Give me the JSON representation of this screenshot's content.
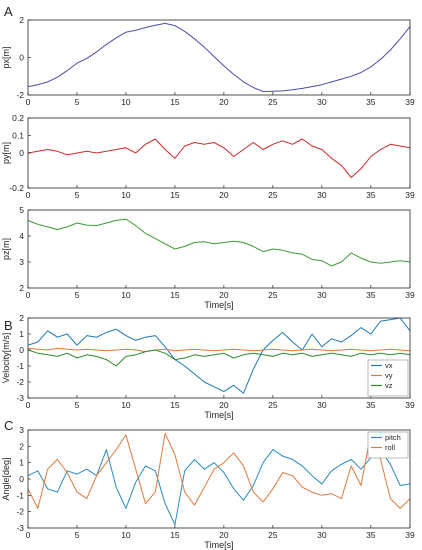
{
  "panel_labels": [
    "A",
    "B",
    "C"
  ],
  "colors": {
    "px": "#4b4bb0",
    "py": "#cc2a2a",
    "pz": "#3f9a35",
    "vx": "#1f77b4",
    "vy": "#e8743b",
    "vz": "#2e8b2e",
    "pitch": "#2a8ac4",
    "roll": "#e07a3e"
  },
  "chart_data": [
    {
      "type": "line",
      "ylabel": "px[m]",
      "xlabel": "",
      "xlim": [
        0,
        39
      ],
      "ylim": [
        -2,
        2
      ],
      "xticks": [
        0,
        5,
        10,
        15,
        20,
        25,
        30,
        35,
        39
      ],
      "yticks": [
        -2,
        0,
        2
      ],
      "series": [
        {
          "color_key": "px",
          "x": [
            0,
            1,
            2,
            3,
            4,
            5,
            6,
            7,
            8,
            9,
            10,
            11,
            12,
            13,
            14,
            15,
            16,
            17,
            18,
            19,
            20,
            21,
            22,
            23,
            24,
            25,
            26,
            27,
            28,
            29,
            30,
            31,
            32,
            33,
            34,
            35,
            36,
            37,
            38,
            39
          ],
          "y": [
            -1.55,
            -1.45,
            -1.3,
            -1.05,
            -0.7,
            -0.3,
            -0.05,
            0.3,
            0.7,
            1.05,
            1.35,
            1.45,
            1.6,
            1.72,
            1.82,
            1.7,
            1.4,
            1.0,
            0.55,
            0.05,
            -0.45,
            -0.9,
            -1.3,
            -1.6,
            -1.82,
            -1.8,
            -1.78,
            -1.72,
            -1.65,
            -1.55,
            -1.45,
            -1.3,
            -1.15,
            -1.0,
            -0.8,
            -0.5,
            -0.1,
            0.4,
            1.0,
            1.65
          ]
        }
      ]
    },
    {
      "type": "line",
      "ylabel": "py[m]",
      "xlabel": "",
      "xlim": [
        0,
        39
      ],
      "ylim": [
        -0.2,
        0.2
      ],
      "xticks": [
        0,
        5,
        10,
        15,
        20,
        25,
        30,
        35,
        39
      ],
      "yticks": [
        -0.2,
        0,
        0.1,
        0.2
      ],
      "series": [
        {
          "color_key": "py",
          "x": [
            0,
            1,
            2,
            3,
            4,
            5,
            6,
            7,
            8,
            9,
            10,
            11,
            12,
            13,
            14,
            15,
            16,
            17,
            18,
            19,
            20,
            21,
            22,
            23,
            24,
            25,
            26,
            27,
            28,
            29,
            30,
            31,
            32,
            33,
            34,
            35,
            36,
            37,
            38,
            39
          ],
          "y": [
            0.0,
            0.01,
            0.02,
            0.01,
            -0.01,
            0.0,
            0.01,
            0.0,
            0.01,
            0.02,
            0.03,
            0.0,
            0.05,
            0.08,
            0.02,
            -0.03,
            0.04,
            0.06,
            0.05,
            0.06,
            0.03,
            -0.02,
            0.02,
            0.06,
            0.02,
            0.05,
            0.07,
            0.05,
            0.08,
            0.04,
            0.02,
            -0.03,
            -0.07,
            -0.14,
            -0.09,
            -0.02,
            0.02,
            0.05,
            0.04,
            0.03
          ]
        }
      ]
    },
    {
      "type": "line",
      "ylabel": "pz[m]",
      "xlabel": "Time[s]",
      "xlim": [
        0,
        39
      ],
      "ylim": [
        2,
        5
      ],
      "xticks": [
        0,
        5,
        10,
        15,
        20,
        25,
        30,
        35,
        39
      ],
      "yticks": [
        2,
        3,
        4,
        5
      ],
      "series": [
        {
          "color_key": "pz",
          "x": [
            0,
            1,
            2,
            3,
            4,
            5,
            6,
            7,
            8,
            9,
            10,
            11,
            12,
            13,
            14,
            15,
            16,
            17,
            18,
            19,
            20,
            21,
            22,
            23,
            24,
            25,
            26,
            27,
            28,
            29,
            30,
            31,
            32,
            33,
            34,
            35,
            36,
            37,
            38,
            39
          ],
          "y": [
            4.6,
            4.45,
            4.35,
            4.25,
            4.35,
            4.5,
            4.42,
            4.4,
            4.5,
            4.6,
            4.65,
            4.4,
            4.1,
            3.9,
            3.7,
            3.5,
            3.6,
            3.75,
            3.78,
            3.7,
            3.75,
            3.8,
            3.75,
            3.6,
            3.4,
            3.5,
            3.45,
            3.35,
            3.3,
            3.1,
            3.05,
            2.85,
            3.0,
            3.35,
            3.15,
            3.0,
            2.95,
            3.0,
            3.05,
            3.0
          ]
        }
      ]
    },
    {
      "type": "line",
      "ylabel": "Velocity[m/s]",
      "xlabel": "Time[s]",
      "xlim": [
        0,
        39
      ],
      "ylim": [
        -3,
        2
      ],
      "xticks": [
        0,
        5,
        10,
        15,
        20,
        25,
        30,
        35,
        39
      ],
      "yticks": [
        -3,
        -2,
        -1,
        0,
        1,
        2
      ],
      "legend": "bottom-right",
      "series": [
        {
          "name": "vx",
          "color_key": "vx",
          "x": [
            0,
            1,
            2,
            3,
            4,
            5,
            6,
            7,
            8,
            9,
            10,
            11,
            12,
            13,
            14,
            15,
            16,
            17,
            18,
            19,
            20,
            21,
            22,
            23,
            24,
            25,
            26,
            27,
            28,
            29,
            30,
            31,
            32,
            33,
            34,
            35,
            36,
            37,
            38,
            39
          ],
          "y": [
            0.3,
            0.5,
            1.2,
            0.8,
            1.0,
            0.3,
            0.9,
            0.8,
            1.1,
            1.3,
            0.9,
            0.6,
            0.8,
            0.9,
            0.2,
            -0.6,
            -1.0,
            -1.5,
            -2.0,
            -2.3,
            -2.6,
            -2.2,
            -2.7,
            -1.2,
            0.0,
            0.6,
            1.1,
            0.5,
            0.0,
            1.0,
            0.2,
            0.7,
            0.5,
            0.9,
            1.4,
            1.0,
            1.8,
            1.9,
            2.0,
            1.2
          ]
        },
        {
          "name": "vy",
          "color_key": "vy",
          "x": [
            0,
            1,
            2,
            3,
            4,
            5,
            6,
            7,
            8,
            9,
            10,
            11,
            12,
            13,
            14,
            15,
            16,
            17,
            18,
            19,
            20,
            21,
            22,
            23,
            24,
            25,
            26,
            27,
            28,
            29,
            30,
            31,
            32,
            33,
            34,
            35,
            36,
            37,
            38,
            39
          ],
          "y": [
            0.1,
            0.05,
            0.0,
            0.1,
            0.05,
            0.0,
            0.05,
            0.0,
            -0.05,
            0.0,
            0.05,
            0.0,
            -0.1,
            0.0,
            0.05,
            -0.05,
            0.0,
            0.05,
            0.0,
            -0.05,
            0.0,
            0.05,
            0.0,
            -0.05,
            0.0,
            0.05,
            0.0,
            -0.05,
            0.0,
            0.05,
            0.0,
            -0.05,
            0.0,
            0.05,
            0.0,
            -0.05,
            0.0,
            0.05,
            0.0,
            -0.05
          ]
        },
        {
          "name": "vz",
          "color_key": "vz",
          "x": [
            0,
            1,
            2,
            3,
            4,
            5,
            6,
            7,
            8,
            9,
            10,
            11,
            12,
            13,
            14,
            15,
            16,
            17,
            18,
            19,
            20,
            21,
            22,
            23,
            24,
            25,
            26,
            27,
            28,
            29,
            30,
            31,
            32,
            33,
            34,
            35,
            36,
            37,
            38,
            39
          ],
          "y": [
            0.0,
            -0.2,
            -0.3,
            -0.4,
            -0.2,
            -0.5,
            -0.3,
            -0.4,
            -0.6,
            -1.0,
            -0.4,
            -0.3,
            -0.1,
            0.0,
            -0.2,
            -0.6,
            -0.5,
            -0.3,
            -0.4,
            -0.3,
            -0.2,
            -0.5,
            -0.3,
            -0.2,
            -0.3,
            -0.4,
            -0.2,
            -0.3,
            -0.2,
            -0.4,
            -0.3,
            -0.2,
            -0.3,
            -0.4,
            -0.2,
            -0.3,
            -0.2,
            -0.3,
            -0.2,
            -0.3
          ]
        }
      ]
    },
    {
      "type": "line",
      "ylabel": "Angle[deg]",
      "xlabel": "Time[s]",
      "xlim": [
        0,
        39
      ],
      "ylim": [
        -3,
        3
      ],
      "xticks": [
        0,
        5,
        10,
        15,
        20,
        25,
        30,
        35,
        39
      ],
      "yticks": [
        -3,
        -2,
        -1,
        0,
        1,
        2,
        3
      ],
      "legend": "top-right",
      "series": [
        {
          "name": "pitch",
          "color_key": "pitch",
          "x": [
            0,
            1,
            2,
            3,
            4,
            5,
            6,
            7,
            8,
            9,
            10,
            11,
            12,
            13,
            14,
            15,
            16,
            17,
            18,
            19,
            20,
            21,
            22,
            23,
            24,
            25,
            26,
            27,
            28,
            29,
            30,
            31,
            32,
            33,
            34,
            35,
            36,
            37,
            38,
            39
          ],
          "y": [
            0.2,
            0.5,
            -0.6,
            -0.8,
            0.5,
            0.3,
            0.6,
            0.2,
            1.8,
            -0.5,
            -1.8,
            -0.2,
            0.8,
            0.5,
            -1.5,
            -2.8,
            0.5,
            1.2,
            0.6,
            1.0,
            0.4,
            -0.6,
            -1.3,
            -0.4,
            1.0,
            1.8,
            1.4,
            1.2,
            0.8,
            0.2,
            -0.3,
            0.5,
            0.9,
            1.2,
            0.6,
            1.3,
            1.8,
            0.9,
            -0.4,
            -0.3
          ]
        },
        {
          "name": "roll",
          "color_key": "roll",
          "x": [
            0,
            1,
            2,
            3,
            4,
            5,
            6,
            7,
            8,
            9,
            10,
            11,
            12,
            13,
            14,
            15,
            16,
            17,
            18,
            19,
            20,
            21,
            22,
            23,
            24,
            25,
            26,
            27,
            28,
            29,
            30,
            31,
            32,
            33,
            34,
            35,
            36,
            37,
            38,
            39
          ],
          "y": [
            -0.6,
            -1.8,
            0.6,
            1.2,
            0.4,
            -0.8,
            -1.2,
            0.2,
            1.0,
            1.8,
            2.7,
            0.6,
            -1.5,
            -0.8,
            2.8,
            1.5,
            -0.8,
            -1.6,
            -0.5,
            0.6,
            1.0,
            1.6,
            0.8,
            -0.8,
            -1.4,
            -0.6,
            0.4,
            0.2,
            -0.5,
            -0.8,
            -1.0,
            -0.9,
            -1.2,
            0.8,
            -0.4,
            2.8,
            1.2,
            -1.2,
            -1.8,
            -1.2
          ]
        }
      ]
    }
  ]
}
